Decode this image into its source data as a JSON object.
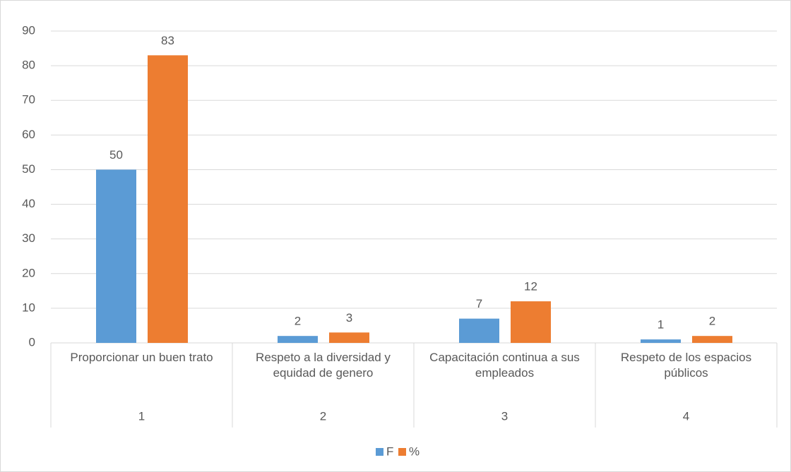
{
  "chart_data": {
    "type": "bar",
    "categories": [
      "Proporcionar un buen trato",
      "Respeto a la diversidad y equidad de genero",
      "Capacitación continua a sus empleados",
      "Respeto de los espacios públicos"
    ],
    "category_numbers": [
      "1",
      "2",
      "3",
      "4"
    ],
    "series": [
      {
        "name": "F",
        "color": "#5b9bd5",
        "values": [
          50,
          2,
          7,
          1
        ]
      },
      {
        "name": "%",
        "color": "#ed7d31",
        "values": [
          83,
          3,
          12,
          2
        ]
      }
    ],
    "ylim": [
      0,
      90
    ],
    "yticks": [
      0,
      10,
      20,
      30,
      40,
      50,
      60,
      70,
      80,
      90
    ],
    "grid": true,
    "legend": "bottom"
  }
}
